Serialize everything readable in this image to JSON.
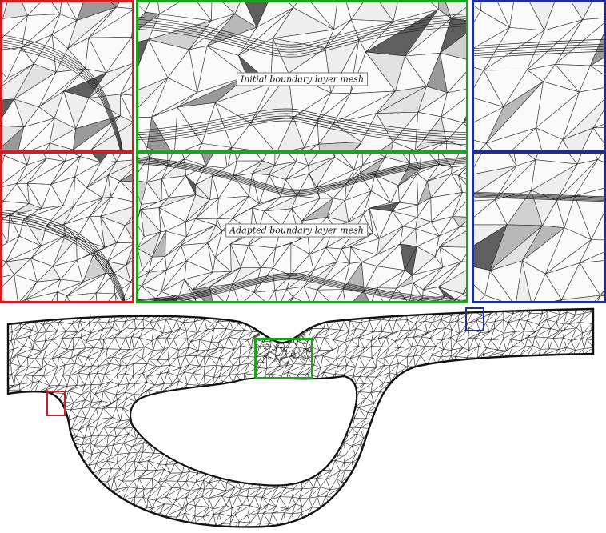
{
  "labels": {
    "initial": "Initial boundary layer mesh",
    "adapted": "Adapted boundary layer mesh"
  },
  "colors": {
    "red": "#cc1f26",
    "green": "#1ea31e",
    "blue": "#1f2f8f",
    "mesh": "#1a1a1a"
  }
}
